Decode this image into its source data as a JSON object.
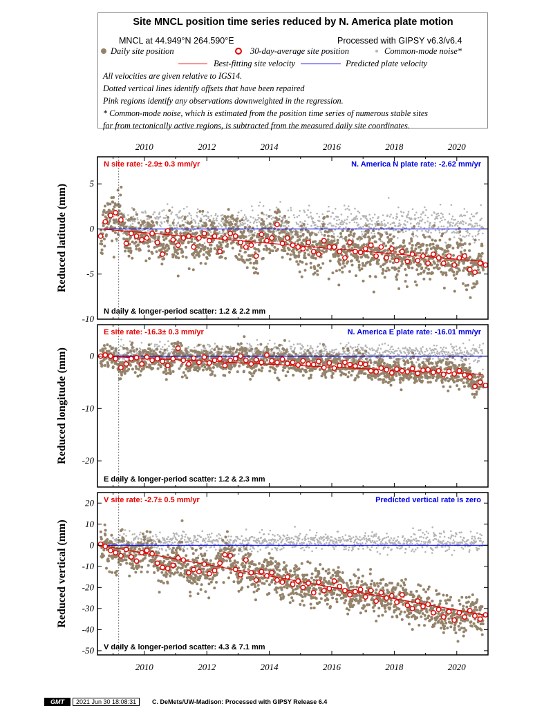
{
  "header": {
    "title": "Site MNCL position time series reduced by N. America plate motion",
    "site_location": "MNCL at 44.949°N 264.590°E",
    "processed": "Processed with GIPSY v6.3/v6.4",
    "legend": {
      "daily": "Daily site position",
      "avg30": "30-day-average site position",
      "cm_noise": "Common-mode noise*",
      "best_fit": "Best-fitting site velocity",
      "predicted": "Predicted plate velocity"
    },
    "notes": [
      "All velocities are given relative to IGS14.",
      "Dotted vertical lines identify offsets that have been repaired",
      "Pink regions identify any observations downweighted in the regression.",
      "* Common-mode noise, which is estimated from the position time series of numerous stable sites",
      "far from tectonically active regions, is subtracted from the measured daily site coordinates."
    ]
  },
  "colors": {
    "daily": "#94836a",
    "cm_noise": "#b4b4b4",
    "avg_fill": "#ffffff",
    "avg_stroke": "#e60000",
    "best_fit": "#e60000",
    "predicted": "#0000e6"
  },
  "chart_data": [
    {
      "type": "scatter",
      "component": "N",
      "ylabel": "Reduced latitude (mm)",
      "xlim": [
        2008.5,
        2021.0
      ],
      "ylim": [
        -10,
        8
      ],
      "yticks": [
        -10,
        -5,
        0,
        5
      ],
      "xticks": [
        2010,
        2012,
        2014,
        2016,
        2018,
        2020
      ],
      "offset_epochs": [
        2009.18
      ],
      "site_rate_label": "N site rate:  -2.9± 0.3 mm/yr",
      "plate_rate_label": "N. America N plate rate: -2.62 mm/yr",
      "scatter_label": "N daily & longer-period scatter:   1.2 &   2.2 mm",
      "best_fit_line": {
        "x": [
          2008.6,
          2020.85
        ],
        "y": [
          0.0,
          -3.6
        ]
      },
      "predicted_line": {
        "x": [
          2008.5,
          2021.0
        ],
        "y": [
          0,
          0
        ]
      },
      "series": [
        {
          "name": "30-day-average site position",
          "x": [
            2008.6,
            2008.75,
            2008.92,
            2009.08,
            2009.25,
            2009.42,
            2009.58,
            2009.75,
            2009.92,
            2010.08,
            2010.25,
            2010.42,
            2010.58,
            2010.75,
            2010.92,
            2011.08,
            2011.25,
            2011.42,
            2011.58,
            2011.75,
            2011.92,
            2012.08,
            2012.25,
            2012.42,
            2012.58,
            2012.75,
            2012.92,
            2013.08,
            2013.25,
            2013.42,
            2013.58,
            2013.75,
            2013.92,
            2014.08,
            2014.25,
            2014.42,
            2014.58,
            2014.75,
            2014.92,
            2015.08,
            2015.25,
            2015.42,
            2015.58,
            2015.75,
            2015.92,
            2016.08,
            2016.25,
            2016.42,
            2016.58,
            2016.75,
            2016.92,
            2017.08,
            2017.25,
            2017.42,
            2017.58,
            2017.75,
            2017.92,
            2018.08,
            2018.25,
            2018.42,
            2018.58,
            2018.75,
            2018.92,
            2019.08,
            2019.25,
            2019.42,
            2019.58,
            2019.75,
            2019.92,
            2020.08,
            2020.25,
            2020.42,
            2020.58,
            2020.75,
            2020.92
          ],
          "y": [
            -0.8,
            0.8,
            1.5,
            1.8,
            1.0,
            -1.6,
            -0.5,
            -0.8,
            -1.2,
            -1.0,
            -0.5,
            -1.5,
            -2.8,
            -0.2,
            -1.2,
            -1.8,
            -1.0,
            -0.8,
            -2.0,
            -1.0,
            -0.5,
            -1.3,
            -0.8,
            -2.5,
            -1.0,
            -0.5,
            -0.8,
            -1.5,
            -2.0,
            -1.8,
            -3.0,
            -0.6,
            -1.3,
            -1.0,
            0.5,
            -1.6,
            -1.0,
            -1.8,
            -2.0,
            -2.2,
            -1.5,
            -2.5,
            -2.8,
            -1.3,
            -2.0,
            -2.0,
            -2.5,
            -3.2,
            -1.5,
            -2.5,
            -2.6,
            -2.2,
            -1.8,
            -3.0,
            -2.0,
            -3.2,
            -2.2,
            -3.5,
            -2.5,
            -3.6,
            -2.8,
            -3.5,
            -3.0,
            -3.8,
            -2.8,
            -3.2,
            -3.8,
            -3.0,
            -4.0,
            -3.2,
            -3.0,
            -4.5,
            -4.8,
            -3.8,
            -4.0
          ]
        }
      ]
    },
    {
      "type": "scatter",
      "component": "E",
      "ylabel": "Reduced longitude (mm)",
      "xlim": [
        2008.5,
        2021.0
      ],
      "ylim": [
        -25,
        6
      ],
      "yticks": [
        -20,
        -10,
        0
      ],
      "xticks": [
        2010,
        2012,
        2014,
        2016,
        2018,
        2020
      ],
      "offset_epochs": [
        2009.18
      ],
      "site_rate_label": "E site rate: -16.3± 0.3 mm/yr",
      "plate_rate_label": "N. America E plate rate: -16.01 mm/yr",
      "scatter_label": "E daily & longer-period scatter:   1.2 &   2.3 mm",
      "best_fit_line": {
        "x": [
          2008.6,
          2020.85
        ],
        "y": [
          0.0,
          -3.5
        ]
      },
      "predicted_line": {
        "x": [
          2008.5,
          2021.0
        ],
        "y": [
          0,
          0
        ]
      },
      "series": [
        {
          "name": "30-day-average site position",
          "x": [
            2008.6,
            2008.75,
            2008.92,
            2009.08,
            2009.25,
            2009.42,
            2009.58,
            2009.75,
            2009.92,
            2010.08,
            2010.25,
            2010.42,
            2010.58,
            2010.75,
            2010.92,
            2011.08,
            2011.25,
            2011.42,
            2011.58,
            2011.75,
            2011.92,
            2012.08,
            2012.25,
            2012.42,
            2012.58,
            2012.75,
            2012.92,
            2013.08,
            2013.25,
            2013.42,
            2013.58,
            2013.75,
            2013.92,
            2014.08,
            2014.25,
            2014.42,
            2014.58,
            2014.75,
            2014.92,
            2015.08,
            2015.25,
            2015.42,
            2015.58,
            2015.75,
            2015.92,
            2016.08,
            2016.25,
            2016.42,
            2016.58,
            2016.75,
            2016.92,
            2017.08,
            2017.25,
            2017.42,
            2017.58,
            2017.75,
            2017.92,
            2018.08,
            2018.25,
            2018.42,
            2018.58,
            2018.75,
            2018.92,
            2019.08,
            2019.25,
            2019.42,
            2019.58,
            2019.75,
            2019.92,
            2020.08,
            2020.25,
            2020.42,
            2020.58,
            2020.75,
            2020.92
          ],
          "y": [
            0.0,
            0.2,
            0.0,
            -0.5,
            -2.2,
            -1.5,
            -0.5,
            -0.3,
            -1.5,
            -0.2,
            -0.8,
            -0.5,
            -1.0,
            -1.8,
            -0.5,
            1.5,
            -0.8,
            -1.5,
            -0.4,
            -1.2,
            -0.2,
            -1.3,
            -0.8,
            -0.5,
            -1.8,
            -0.8,
            -0.5,
            0.0,
            -0.8,
            -1.5,
            -0.7,
            -1.2,
            0.2,
            -0.9,
            -1.2,
            -0.6,
            -1.4,
            -1.2,
            -1.7,
            -0.9,
            -1.5,
            -1.6,
            -1.0,
            -2.2,
            -1.3,
            -2.3,
            -1.8,
            -1.2,
            -1.6,
            -1.9,
            -1.4,
            -1.6,
            -2.8,
            -3.0,
            -2.3,
            -2.6,
            -3.2,
            -2.5,
            -2.8,
            -3.0,
            -2.4,
            -3.3,
            -2.7,
            -2.6,
            -3.1,
            -2.8,
            -3.5,
            -2.9,
            -3.4,
            -2.8,
            -3.6,
            -4.0,
            -5.8,
            -5.0,
            -5.6
          ]
        }
      ]
    },
    {
      "type": "scatter",
      "component": "V",
      "ylabel": "Reduced vertical (mm)",
      "xlim": [
        2008.5,
        2021.0
      ],
      "ylim": [
        -52,
        25
      ],
      "yticks": [
        -50,
        -40,
        -30,
        -20,
        -10,
        0,
        10,
        20
      ],
      "xticks": [
        2010,
        2012,
        2014,
        2016,
        2018,
        2020
      ],
      "offset_epochs": [
        2009.18
      ],
      "site_rate_label": "V site rate:  -2.7± 0.5 mm/yr",
      "plate_rate_label": "Predicted vertical rate is zero",
      "scatter_label": "V daily & longer-period scatter:   4.3 &   7.1 mm",
      "best_fit_line": {
        "x": [
          2008.6,
          2020.85
        ],
        "y": [
          0.0,
          -33.0
        ]
      },
      "predicted_line": {
        "x": [
          2008.5,
          2021.0
        ],
        "y": [
          0,
          0
        ]
      },
      "series": [
        {
          "name": "30-day-average site position",
          "x": [
            2008.6,
            2008.75,
            2008.92,
            2009.08,
            2009.25,
            2009.42,
            2009.58,
            2009.75,
            2009.92,
            2010.08,
            2010.25,
            2010.42,
            2010.58,
            2010.75,
            2010.92,
            2011.08,
            2011.25,
            2011.42,
            2011.58,
            2011.75,
            2011.92,
            2012.08,
            2012.25,
            2012.42,
            2012.58,
            2012.75,
            2012.92,
            2013.08,
            2013.25,
            2013.42,
            2013.58,
            2013.75,
            2013.92,
            2014.08,
            2014.25,
            2014.42,
            2014.58,
            2014.75,
            2014.92,
            2015.08,
            2015.25,
            2015.42,
            2015.58,
            2015.75,
            2015.92,
            2016.08,
            2016.25,
            2016.42,
            2016.58,
            2016.75,
            2016.92,
            2017.08,
            2017.25,
            2017.42,
            2017.58,
            2017.75,
            2017.92,
            2018.08,
            2018.25,
            2018.42,
            2018.58,
            2018.75,
            2018.92,
            2019.08,
            2019.25,
            2019.42,
            2019.58,
            2019.75,
            2019.92,
            2020.08,
            2020.25,
            2020.42,
            2020.58,
            2020.75,
            2020.92
          ],
          "y": [
            0.5,
            -0.5,
            -2.5,
            -3.5,
            -5.0,
            -2.0,
            -5.5,
            -7.5,
            -3.5,
            -2.5,
            -4.0,
            -8.5,
            -10.5,
            -11.0,
            -9.5,
            -6.0,
            -7.0,
            -13.0,
            -11.5,
            -12.5,
            -9.0,
            -13.5,
            -12.0,
            -8.5,
            -4.5,
            -5.0,
            -11.5,
            -14.0,
            -7.0,
            -13.0,
            -16.5,
            -12.5,
            -14.5,
            -13.0,
            -16.5,
            -17.5,
            -15.0,
            -18.5,
            -17.0,
            -20.0,
            -18.0,
            -22.5,
            -17.5,
            -21.5,
            -20.5,
            -17.0,
            -19.5,
            -21.5,
            -23.5,
            -22.0,
            -21.0,
            -24.5,
            -21.5,
            -26.5,
            -22.5,
            -25.0,
            -24.0,
            -27.0,
            -23.5,
            -28.5,
            -30.0,
            -26.5,
            -29.0,
            -28.0,
            -32.0,
            -30.5,
            -34.0,
            -31.5,
            -35.5,
            -32.0,
            -34.0,
            -31.0,
            -33.5,
            -35.0,
            -33.0
          ]
        }
      ]
    }
  ],
  "xaxis_top_labels": [
    "2010",
    "2012",
    "2014",
    "2016",
    "2018",
    "2020"
  ],
  "xaxis_bottom_labels": [
    "2010",
    "2012",
    "2014",
    "2016",
    "2018",
    "2020"
  ],
  "footer": {
    "logo_text": "GMT",
    "date": "2021 Jun 30 18:08:31",
    "credit": "C. DeMets/UW-Madison: Processed with GIPSY Release 6.4"
  }
}
